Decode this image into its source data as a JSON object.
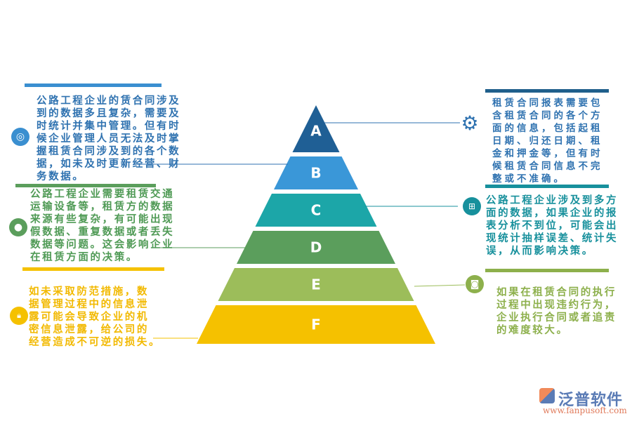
{
  "colors": {
    "blue": "#2f72b0",
    "green": "#4f9a55",
    "yellow": "#f2b900",
    "teal": "#17909c",
    "olive": "#8db04c",
    "navy": "#1f5f8b"
  },
  "pyramid": {
    "levels": [
      {
        "label": "A",
        "color": "#1f5f95"
      },
      {
        "label": "B",
        "color": "#3a97d8"
      },
      {
        "label": "C",
        "color": "#1ca6a8"
      },
      {
        "label": "D",
        "color": "#5b9e5c"
      },
      {
        "label": "E",
        "color": "#9cbd5a"
      },
      {
        "label": "F",
        "color": "#f5c100"
      }
    ]
  },
  "left": [
    {
      "icon": "aperture-icon",
      "lines": [
        "公路工程企业的赁合同涉及",
        "到的数据多且复杂，需要及",
        "时统计并集中管理。但有时",
        "候企业管理人员无法及时掌",
        "握租赁合同涉及到的各个数",
        "据，如未及时更新经营、财",
        "务数据。"
      ]
    },
    {
      "icon": "apple-icon",
      "lines": [
        "公路工程企业需要租赁交通",
        "运输设备等，租赁方的数据",
        "来源有些复杂，有可能出现",
        "假数据、重复数据或者丢失",
        "数据等问题。这会影响企业",
        "在租赁方面的决策。"
      ]
    },
    {
      "icon": "lock-icon",
      "lines": [
        "如未采取防范措施，数",
        "据管理过程中的信息泄",
        "露可能会导致企业的机",
        "密信息泄露，给公司的",
        "经营造成不可逆的损失。"
      ]
    }
  ],
  "right": [
    {
      "icon": "gear-icon",
      "lines": [
        "租赁合同报表需要包",
        "含租赁合同的各个方",
        "面的信息，包括起租",
        "日期、归还日期、租",
        "金和押金等，但有时",
        "候租赁合同信息不完",
        "整或不准确。"
      ]
    },
    {
      "icon": "windows-icon",
      "lines": [
        "公路工程企业涉及到多方",
        "面的数据，如果企业的报",
        "表分析不到位，可能会出",
        "现统计抽样误差、统计失",
        "误，从而影响决策。"
      ]
    },
    {
      "icon": "instagram-icon",
      "lines": [
        "如果在租赁合同的执行",
        "过程中出现违约行为，",
        "企业执行合同或者追责",
        "的难度较大。"
      ]
    }
  ],
  "logo": {
    "name": "泛普软件",
    "url": "www.fanpusoft.com"
  }
}
